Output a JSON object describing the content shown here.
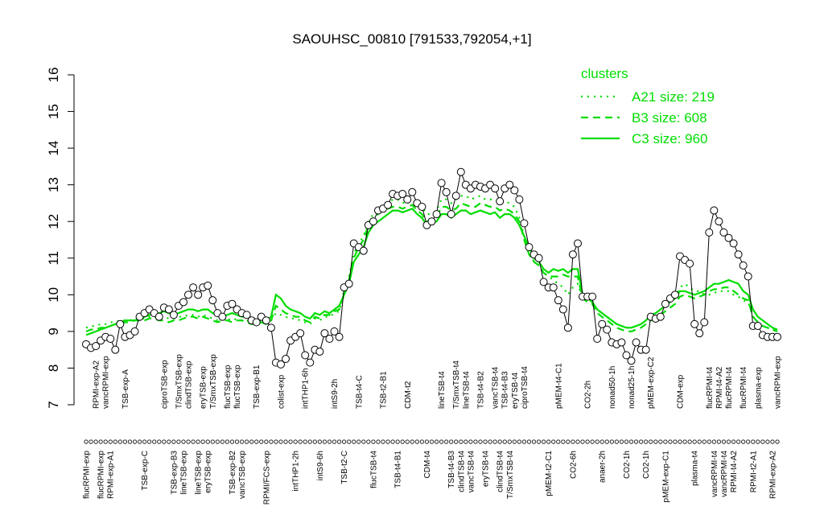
{
  "chart_data": {
    "type": "line",
    "title": "SAOUHSC_00810 [791533,792054,+1]",
    "ylim": [
      7,
      16
    ],
    "yticks": [
      7,
      8,
      9,
      10,
      11,
      12,
      13,
      14,
      15,
      16
    ],
    "color": "#000000",
    "categories_top": [
      null,
      null,
      "RPMI-exp-A2",
      null,
      "vancRPMI-exp",
      null,
      null,
      null,
      "TSB-exp-A",
      null,
      null,
      null,
      null,
      null,
      null,
      null,
      "ciproTSB-exp",
      null,
      null,
      "T/SmxTSB-exp",
      null,
      "clindTSB-exp",
      null,
      null,
      "eryTSB-exp",
      null,
      "T/SmxTSB-exp",
      null,
      null,
      "flucTSB-exp",
      null,
      "flucTSB-exp",
      null,
      null,
      null,
      "TSB-exp-B1",
      null,
      null,
      null,
      null,
      "colist-exp",
      null,
      null,
      null,
      null,
      "intTHP1-6h",
      null,
      null,
      null,
      null,
      null,
      "intS9-2h",
      null,
      null,
      null,
      null,
      "TSB-t4-C",
      null,
      null,
      null,
      null,
      "TSB-t2-B1",
      null,
      null,
      null,
      null,
      "CDM-t2",
      null,
      null,
      null,
      null,
      null,
      null,
      "lineTSB-t4",
      null,
      null,
      "T/SmxTSB-t4",
      null,
      "lineTSB-t4",
      null,
      null,
      "TSB-t4-B2",
      null,
      null,
      "vancTSB-t4",
      null,
      "TSB-t4-B3",
      null,
      "eryTSB-t4",
      null,
      "ciproTSB-t4",
      null,
      null,
      null,
      null,
      null,
      null,
      "pMEM-t4-C1",
      null,
      null,
      null,
      null,
      null,
      "CO2-2h",
      null,
      null,
      null,
      null,
      "nonad50-1h",
      null,
      null,
      null,
      "nonad25-1h",
      null,
      null,
      null,
      "pMEM-exp-C2",
      null,
      null,
      null,
      null,
      null,
      "CDM-exp",
      null,
      null,
      null,
      null,
      null,
      "flucRPMI-t4",
      null,
      "RPMI-t4-A2",
      null,
      "flucRPMI-t4",
      null,
      null,
      "flucRPMI-t4",
      null,
      null,
      "plasma-exp",
      null,
      null,
      null,
      "vancRPMI-exp"
    ],
    "categories_bottom": [
      "flucRPMI-exp",
      null,
      null,
      "flucRPMI-exp",
      null,
      "RPMI-exp-A1",
      null,
      null,
      null,
      null,
      null,
      null,
      "TSB-exp-C",
      null,
      null,
      null,
      null,
      null,
      "TSB-exp-B3",
      null,
      "lineTSB-exp",
      null,
      null,
      "lineTSB-exp",
      null,
      "eryTSB-exp",
      null,
      null,
      null,
      null,
      "TSB-exp-B2",
      null,
      "vancTSB-exp",
      null,
      null,
      null,
      null,
      "RPMI/FCS-exp",
      null,
      null,
      null,
      null,
      null,
      "intTHP1-2h",
      null,
      null,
      null,
      null,
      "intS9-6h",
      null,
      null,
      null,
      null,
      "TSB-t2-C",
      null,
      null,
      null,
      null,
      null,
      "flucTSB-t4",
      null,
      null,
      null,
      null,
      "TSB-t4-B1",
      null,
      null,
      null,
      null,
      null,
      "CDM-t4",
      null,
      null,
      null,
      null,
      "TSB-t4-B3",
      null,
      "clindTSB-t4",
      null,
      "vancTSB-t4",
      null,
      null,
      "eryTSB-t4",
      null,
      null,
      "clindTSB-t4",
      null,
      "T/SmxTSB-t4",
      null,
      null,
      null,
      null,
      null,
      null,
      null,
      "pMEM-t2-C1",
      null,
      null,
      null,
      null,
      "CO2-6h",
      null,
      null,
      null,
      null,
      null,
      "anaer-2h",
      null,
      null,
      null,
      null,
      "CO2-1h",
      null,
      null,
      null,
      "CO2-1h",
      null,
      null,
      null,
      "pMEM-exp-C1",
      null,
      null,
      null,
      null,
      null,
      "plasma-t4",
      null,
      null,
      null,
      "vancRPMI-t4",
      null,
      "vancRPMI-t4",
      null,
      "RPMI-t4-A2",
      null,
      null,
      null,
      "RPMI-t2-A1",
      null,
      null,
      null,
      "RPMI-exp-A2",
      null
    ],
    "values": [
      8.65,
      8.55,
      8.6,
      8.75,
      8.85,
      8.8,
      8.5,
      9.2,
      8.85,
      8.9,
      9.0,
      9.4,
      9.5,
      9.6,
      9.5,
      9.4,
      9.65,
      9.6,
      9.45,
      9.7,
      9.8,
      10.0,
      10.2,
      10.0,
      10.2,
      10.25,
      9.85,
      9.5,
      9.4,
      9.7,
      9.75,
      9.6,
      9.5,
      9.45,
      9.3,
      9.25,
      9.4,
      9.3,
      9.1,
      8.15,
      8.1,
      8.25,
      8.75,
      8.85,
      8.95,
      8.35,
      8.15,
      8.5,
      8.45,
      8.95,
      8.8,
      9.0,
      8.85,
      10.2,
      10.3,
      11.4,
      11.3,
      11.2,
      11.9,
      12.0,
      12.3,
      12.35,
      12.45,
      12.75,
      12.7,
      12.75,
      12.6,
      12.8,
      12.5,
      12.4,
      11.9,
      12.0,
      12.2,
      13.05,
      12.8,
      12.2,
      12.7,
      13.35,
      13.0,
      12.9,
      13.0,
      12.95,
      12.9,
      13.0,
      12.9,
      12.55,
      12.9,
      13.0,
      12.85,
      12.6,
      11.95,
      11.3,
      11.1,
      11.0,
      10.35,
      10.2,
      10.2,
      9.85,
      9.6,
      9.1,
      11.1,
      11.4,
      9.95,
      9.95,
      9.95,
      8.8,
      9.2,
      9.05,
      8.7,
      8.65,
      8.7,
      8.35,
      8.2,
      8.7,
      8.5,
      8.5,
      9.4,
      9.35,
      9.4,
      9.75,
      9.9,
      10.0,
      11.05,
      10.95,
      10.85,
      9.2,
      8.95,
      9.25,
      11.7,
      12.3,
      12.0,
      11.7,
      11.55,
      11.4,
      11.1,
      10.8,
      10.5,
      9.15,
      9.15,
      8.9,
      8.85,
      8.85,
      8.85
    ],
    "legend_title": "clusters",
    "legend_color": "#00dd00",
    "series": [
      {
        "name": "A21 size: 219",
        "color": "#00dd00",
        "linestyle": "dotted",
        "values": [
          9.1,
          9.15,
          9.15,
          9.2,
          9.2,
          9.25,
          9.25,
          9.3,
          9.3,
          9.3,
          9.35,
          9.35,
          9.35,
          9.4,
          9.4,
          9.35,
          9.4,
          9.35,
          9.35,
          9.4,
          9.4,
          9.45,
          9.45,
          9.4,
          9.45,
          9.4,
          9.35,
          9.3,
          9.35,
          9.35,
          9.3,
          9.35,
          9.3,
          9.3,
          9.25,
          9.25,
          9.3,
          9.25,
          9.3,
          9.5,
          9.45,
          9.4,
          9.35,
          9.35,
          9.3,
          9.25,
          9.2,
          9.35,
          9.3,
          9.4,
          9.4,
          9.5,
          9.55,
          10.1,
          10.5,
          11.1,
          11.4,
          11.6,
          12.0,
          12.2,
          12.3,
          12.4,
          12.5,
          12.6,
          12.6,
          12.5,
          12.55,
          12.6,
          12.5,
          12.4,
          12.2,
          12.2,
          12.3,
          12.6,
          12.6,
          12.5,
          12.6,
          12.7,
          12.7,
          12.6,
          12.65,
          12.7,
          12.6,
          12.6,
          12.6,
          12.5,
          12.55,
          12.5,
          12.4,
          12.1,
          11.6,
          11.2,
          10.9,
          10.8,
          10.6,
          10.5,
          10.4,
          10.3,
          10.2,
          10.0,
          10.2,
          10.3,
          9.9,
          9.85,
          9.8,
          9.6,
          9.5,
          9.4,
          9.3,
          9.2,
          9.15,
          9.1,
          9.1,
          9.15,
          9.2,
          9.3,
          9.4,
          9.5,
          9.6,
          9.7,
          9.8,
          9.9,
          10.2,
          10.3,
          10.2,
          10.1,
          10.1,
          10.0,
          10.0,
          10.05,
          10.1,
          10.1,
          10.1,
          10.0,
          9.95,
          9.85,
          9.8,
          9.4,
          9.25,
          9.15,
          9.1,
          9.05,
          9.0
        ]
      },
      {
        "name": "B3 size: 608",
        "color": "#00dd00",
        "linestyle": "dashed",
        "values": [
          9.0,
          9.05,
          9.05,
          9.1,
          9.1,
          9.15,
          9.2,
          9.2,
          9.25,
          9.25,
          9.3,
          9.3,
          9.3,
          9.35,
          9.35,
          9.3,
          9.3,
          9.25,
          9.3,
          9.3,
          9.35,
          9.4,
          9.4,
          9.35,
          9.4,
          9.35,
          9.3,
          9.25,
          9.3,
          9.3,
          9.25,
          9.3,
          9.3,
          9.25,
          9.2,
          9.2,
          9.25,
          9.2,
          9.3,
          9.7,
          9.6,
          9.5,
          9.45,
          9.4,
          9.4,
          9.3,
          9.25,
          9.4,
          9.35,
          9.45,
          9.45,
          9.55,
          9.6,
          10.0,
          10.4,
          11.0,
          11.3,
          11.5,
          11.9,
          12.1,
          12.2,
          12.3,
          12.35,
          12.4,
          12.4,
          12.35,
          12.4,
          12.45,
          12.3,
          12.2,
          12.0,
          12.05,
          12.1,
          12.4,
          12.4,
          12.3,
          12.35,
          12.5,
          12.45,
          12.4,
          12.4,
          12.5,
          12.45,
          12.4,
          12.4,
          12.3,
          12.35,
          12.3,
          12.2,
          12.0,
          11.5,
          11.1,
          10.9,
          10.8,
          10.6,
          10.5,
          10.5,
          10.5,
          10.55,
          10.5,
          10.5,
          10.5,
          9.9,
          9.8,
          9.75,
          9.5,
          9.4,
          9.3,
          9.2,
          9.1,
          9.05,
          9.0,
          9.0,
          9.05,
          9.1,
          9.2,
          9.3,
          9.35,
          9.45,
          9.55,
          9.65,
          9.75,
          9.95,
          10.0,
          9.95,
          9.9,
          9.95,
          10.0,
          10.1,
          10.15,
          10.15,
          10.2,
          10.2,
          10.1,
          10.0,
          9.9,
          9.85,
          9.4,
          9.25,
          9.15,
          9.1,
          9.05,
          9.0
        ]
      },
      {
        "name": "C3 size: 960",
        "color": "#00dd00",
        "linestyle": "solid",
        "values": [
          8.9,
          8.95,
          9.0,
          9.05,
          9.1,
          9.15,
          9.2,
          9.25,
          9.3,
          9.3,
          9.3,
          9.35,
          9.4,
          9.45,
          9.5,
          9.5,
          9.55,
          9.5,
          9.45,
          9.5,
          9.55,
          9.6,
          9.6,
          9.55,
          9.6,
          9.6,
          9.5,
          9.45,
          9.4,
          9.45,
          9.5,
          9.45,
          9.4,
          9.4,
          9.35,
          9.3,
          9.35,
          9.3,
          9.4,
          10.0,
          9.9,
          9.7,
          9.6,
          9.55,
          9.5,
          9.4,
          9.35,
          9.5,
          9.45,
          9.55,
          9.5,
          9.6,
          9.7,
          10.0,
          10.3,
          10.9,
          11.1,
          11.3,
          11.7,
          11.9,
          12.0,
          12.1,
          12.2,
          12.3,
          12.3,
          12.25,
          12.3,
          12.35,
          12.2,
          12.1,
          11.9,
          11.95,
          12.0,
          12.2,
          12.2,
          12.1,
          12.2,
          12.3,
          12.3,
          12.2,
          12.25,
          12.3,
          12.25,
          12.2,
          12.25,
          12.1,
          12.2,
          12.2,
          12.1,
          11.9,
          11.6,
          11.3,
          11.0,
          10.9,
          10.7,
          10.6,
          10.7,
          10.65,
          10.7,
          10.6,
          10.7,
          10.7,
          10.0,
          9.9,
          9.8,
          9.6,
          9.5,
          9.4,
          9.3,
          9.2,
          9.15,
          9.1,
          9.1,
          9.15,
          9.2,
          9.3,
          9.45,
          9.5,
          9.6,
          9.7,
          9.8,
          9.9,
          10.1,
          10.1,
          10.05,
          10.0,
          10.05,
          10.1,
          10.2,
          10.3,
          10.3,
          10.35,
          10.4,
          10.35,
          10.3,
          10.1,
          10.0,
          9.6,
          9.4,
          9.3,
          9.2,
          9.1,
          9.05
        ]
      }
    ]
  }
}
